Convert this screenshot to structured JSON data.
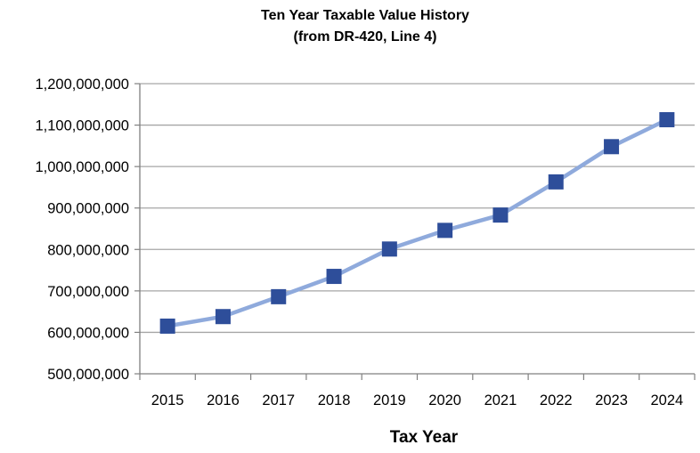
{
  "chart_data": {
    "type": "line",
    "title": "Ten Year Taxable Value History",
    "subtitle": "(from DR-420, Line 4)",
    "xlabel": "Tax Year",
    "ylabel": "",
    "categories": [
      "2015",
      "2016",
      "2017",
      "2018",
      "2019",
      "2020",
      "2021",
      "2022",
      "2023",
      "2024"
    ],
    "series": [
      {
        "values": [
          615000000,
          638000000,
          686000000,
          735000000,
          801000000,
          846000000,
          883000000,
          963000000,
          1048000000,
          1113000000
        ],
        "color": "#8faadc",
        "marker": "square",
        "marker_color": "#2e4e9a"
      }
    ],
    "ylim": [
      500000000,
      1200000000
    ],
    "yticks": [
      500000000,
      600000000,
      700000000,
      800000000,
      900000000,
      1000000000,
      1100000000,
      1200000000
    ],
    "ytick_labels": [
      "500,000,000",
      "600,000,000",
      "700,000,000",
      "800,000,000",
      "900,000,000",
      "1,000,000,000",
      "1,100,000,000",
      "1,200,000,000"
    ],
    "grid": true,
    "legend": "none"
  }
}
